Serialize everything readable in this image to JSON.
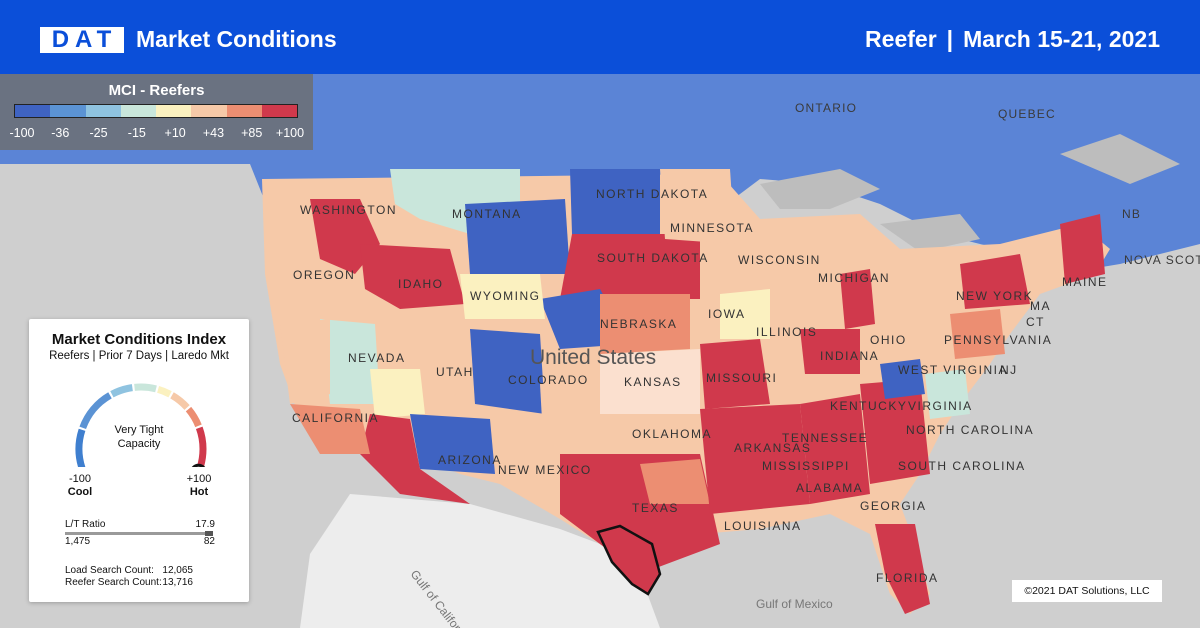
{
  "header": {
    "logo_text": "DAT",
    "title": "Market Conditions",
    "equipment": "Reefer",
    "separator": "|",
    "date_range": "March 15-21, 2021"
  },
  "legend": {
    "title": "MCI - Reefers",
    "ticks": [
      "-100",
      "-36",
      "-25",
      "-15",
      "+10",
      "+43",
      "+85",
      "+100"
    ],
    "colors": [
      "#3f63c2",
      "#5b93d4",
      "#8fc3e0",
      "#c9e6db",
      "#fbf1c0",
      "#f6c9a8",
      "#ec8e72",
      "#d0394c"
    ]
  },
  "panel": {
    "title": "Market Conditions Index",
    "subtitle": "Reefers | Prior 7 Days | Laredo Mkt",
    "gauge_text_line1": "Very Tight",
    "gauge_text_line2": "Capacity",
    "gauge_value": 100,
    "min_value": "-100",
    "min_label": "Cool",
    "max_value": "+100",
    "max_label": "Hot",
    "lt_ratio_label": "L/T Ratio",
    "lt_ratio_value": "17.9",
    "loads_value": "1,475",
    "trucks_value": "82",
    "load_search_label": "Load Search Count:",
    "load_search_value": "12,065",
    "reefer_search_label": "Reefer Search Count:",
    "reefer_search_value": "13,716"
  },
  "map_labels": {
    "states": [
      "WASHINGTON",
      "OREGON",
      "CALIFORNIA",
      "NEVADA",
      "IDAHO",
      "MONTANA",
      "WYOMING",
      "UTAH",
      "ARIZONA",
      "COLORADO",
      "NEW MEXICO",
      "NORTH DAKOTA",
      "SOUTH DAKOTA",
      "NEBRASKA",
      "KANSAS",
      "OKLAHOMA",
      "TEXAS",
      "MINNESOTA",
      "IOWA",
      "MISSOURI",
      "ARKANSAS",
      "LOUISIANA",
      "WISCONSIN",
      "ILLINOIS",
      "MICHIGAN",
      "INDIANA",
      "OHIO",
      "KENTUCKY",
      "TENNESSEE",
      "MISSISSIPPI",
      "ALABAMA",
      "GEORGIA",
      "FLORIDA",
      "WEST VIRGINIA",
      "VIRGINIA",
      "NORTH CAROLINA",
      "SOUTH CAROLINA",
      "PENNSYLVANIA",
      "NEW YORK",
      "MAINE",
      "NJ",
      "CT",
      "MA"
    ],
    "regions": [
      "ONTARIO",
      "QUEBEC",
      "NB",
      "NOVA SCOTIA",
      "United States"
    ],
    "water": [
      "Gulf of California",
      "Gulf of Mexico"
    ]
  },
  "copyright": "©2021 DAT Solutions, LLC"
}
